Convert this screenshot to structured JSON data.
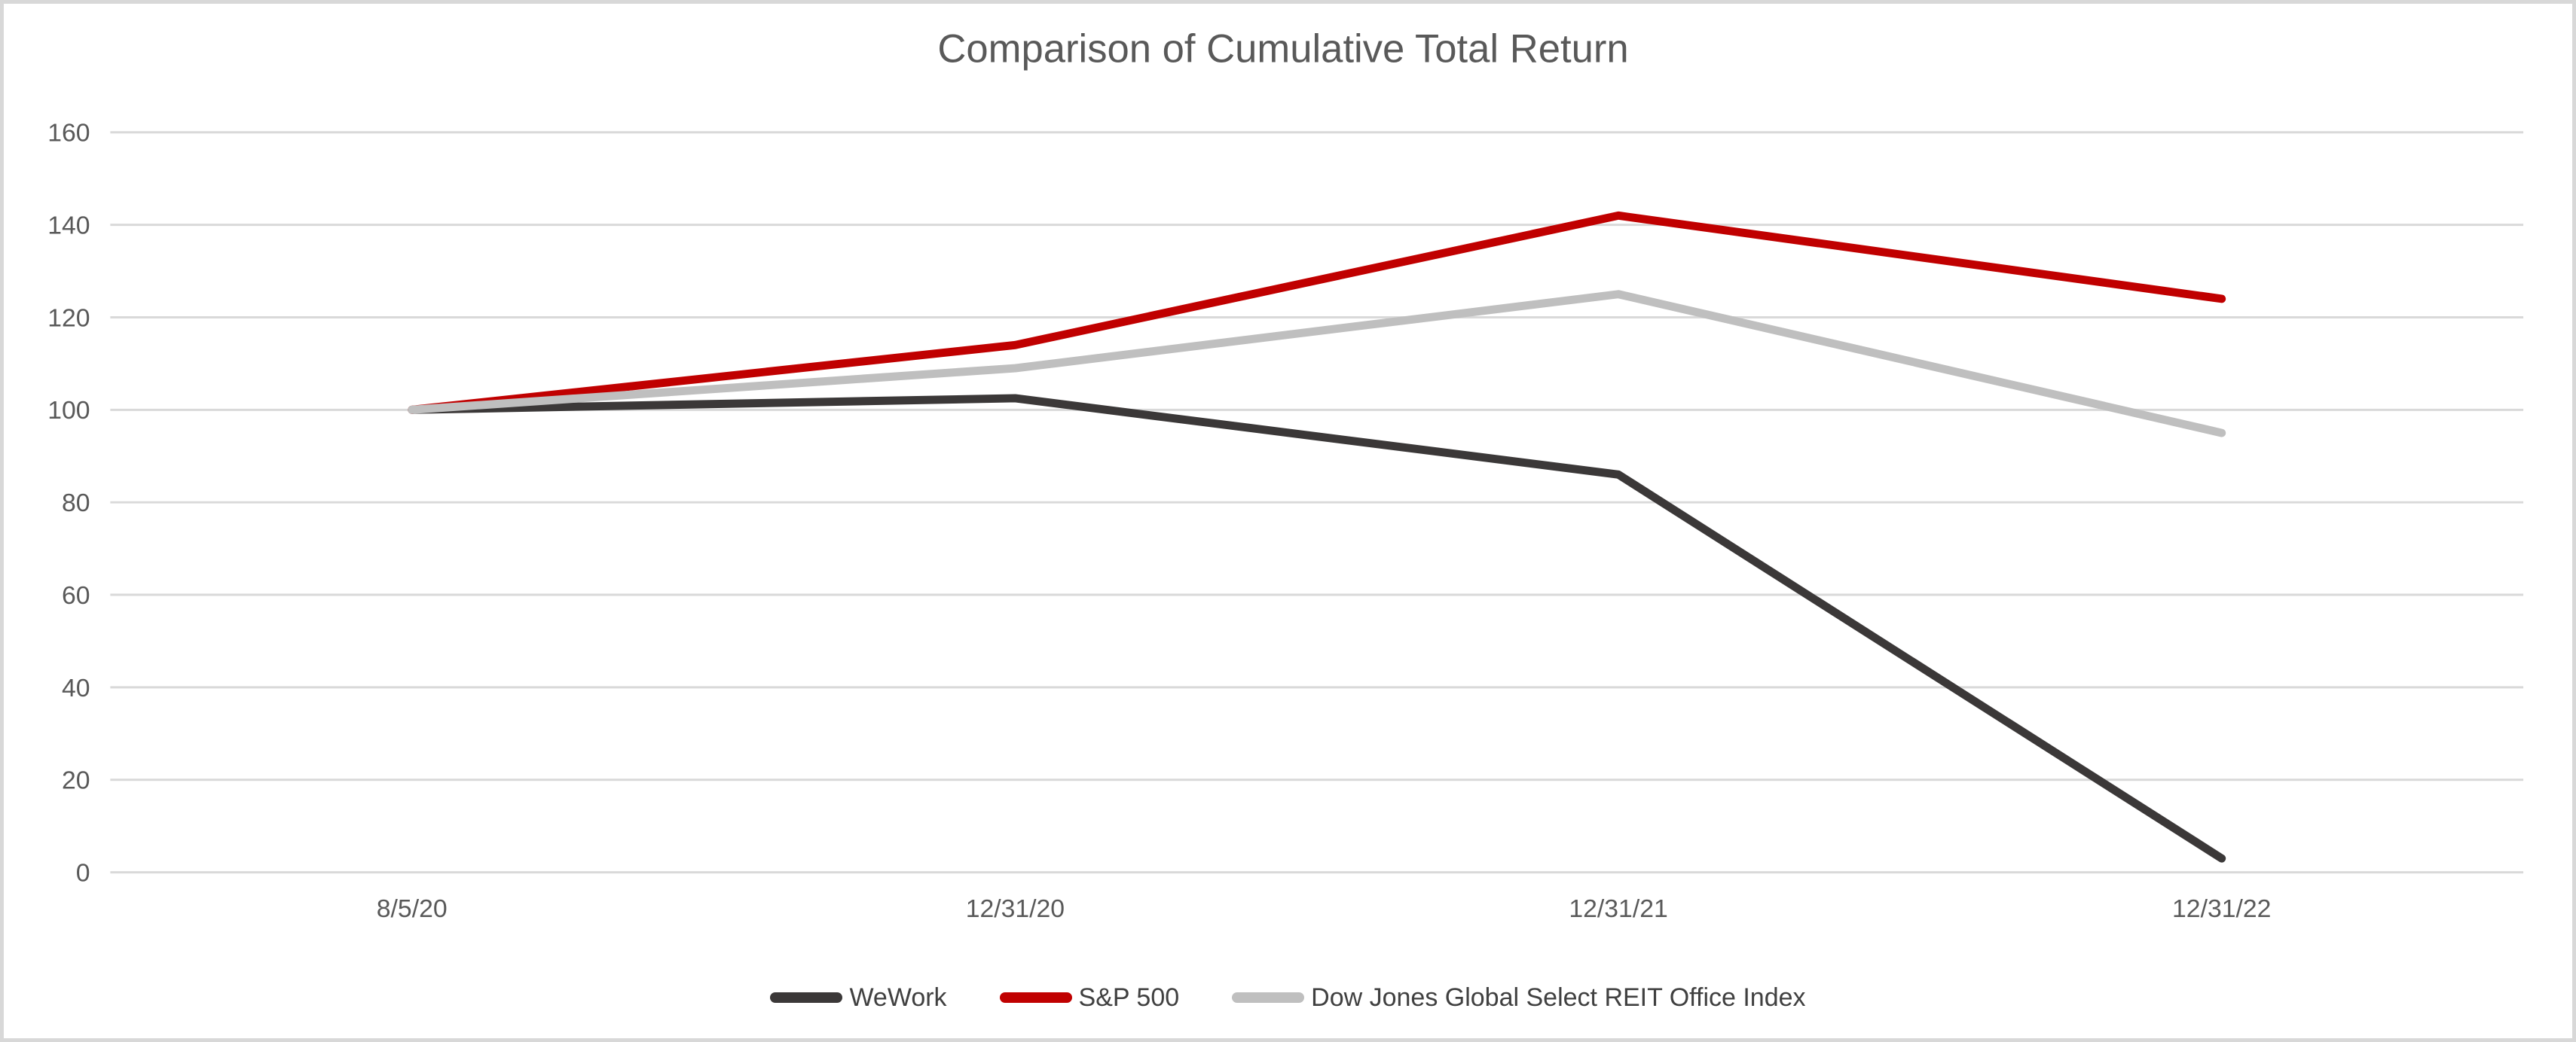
{
  "chart_data": {
    "type": "line",
    "title": "Comparison of Cumulative Total Return",
    "categories": [
      "8/5/20",
      "12/31/20",
      "12/31/21",
      "12/31/22"
    ],
    "series": [
      {
        "name": "WeWork",
        "color": "#3B3838",
        "values": [
          100,
          102.5,
          86,
          3
        ]
      },
      {
        "name": "S&P 500",
        "color": "#C00000",
        "values": [
          100,
          114,
          142,
          124
        ]
      },
      {
        "name": "Dow Jones Global Select REIT Office Index",
        "color": "#BFBFBF",
        "values": [
          100,
          109,
          125,
          95
        ]
      }
    ],
    "xlabel": "",
    "ylabel": "",
    "ylim": [
      0,
      160
    ],
    "yticks": [
      0,
      20,
      40,
      60,
      80,
      100,
      120,
      140,
      160
    ],
    "grid": "horizontal",
    "legend_position": "bottom",
    "colors": {
      "title_text": "#595959",
      "tick_text": "#595959",
      "legend_text": "#404040",
      "gridline": "#D9D9D9",
      "border": "#D8D8D8",
      "background": "#FFFFFF"
    }
  }
}
